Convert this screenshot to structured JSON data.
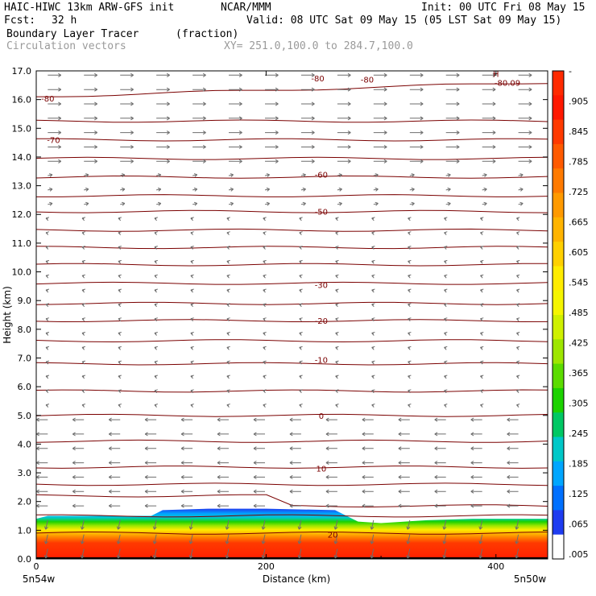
{
  "header": {
    "model": "HAIC-HIWC 13km ARW-GFS init",
    "org": "NCAR/MMM",
    "init": "Init: 00 UTC Fri 08 May 15",
    "fcst_label": "Fcst:",
    "fcst_value": "32 h",
    "valid": "Valid: 08 UTC Sat 09 May 15 (05 LST Sat 09 May 15)",
    "field": "Boundary Layer Tracer",
    "field_units": "(fraction)",
    "vectors": "Circulation vectors",
    "xy": "XY= 251.0,100.0 to 284.7,100.0"
  },
  "chart_data": {
    "type": "heatmap",
    "xlabel": "Distance (km)",
    "ylabel": "Height (km)",
    "xlim": [
      0,
      445
    ],
    "ylim": [
      0,
      17
    ],
    "x_ticks": [
      {
        "value": 0,
        "label": "0"
      },
      {
        "value": 200,
        "label": "200"
      },
      {
        "value": 400,
        "label": "400"
      }
    ],
    "x_end_labels": {
      "left": "5n54w",
      "right": "5n50w"
    },
    "y_ticks": [
      "0.0",
      "1.0",
      "2.0",
      "3.0",
      "4.0",
      "5.0",
      "6.0",
      "7.0",
      "8.0",
      "9.0",
      "10.0",
      "11.0",
      "12.0",
      "13.0",
      "14.0",
      "15.0",
      "16.0",
      "17.0"
    ],
    "colorbar": {
      "labels": [
        "-",
        ".905",
        ".845",
        ".785",
        ".725",
        ".665",
        ".605",
        ".545",
        ".485",
        ".425",
        ".365",
        ".305",
        ".245",
        ".185",
        ".125",
        ".065",
        ".005"
      ],
      "colors": [
        "#ff2a00",
        "#ff1800",
        "#ff3a00",
        "#ff5a00",
        "#ff7a00",
        "#ff9a00",
        "#ffb400",
        "#ffd000",
        "#ffec00",
        "#f5f500",
        "#cff000",
        "#9ee600",
        "#5cdc00",
        "#1cd200",
        "#00c864",
        "#00c8c8",
        "#00a6ff",
        "#0070ff",
        "#1e3cf0",
        "#ffffff"
      ]
    },
    "tracer_boundary": {
      "x": [
        0,
        10,
        25,
        50,
        80,
        100,
        110,
        150,
        200,
        260,
        280,
        300,
        340,
        380,
        445
      ],
      "top_km": [
        1.4,
        1.5,
        1.5,
        1.5,
        1.5,
        1.5,
        1.7,
        1.75,
        1.75,
        1.7,
        1.3,
        1.25,
        1.35,
        1.4,
        1.4
      ]
    },
    "temperature_contours": [
      {
        "label": "-80",
        "x": 10,
        "y": 16.05
      },
      {
        "label": "-80",
        "x": 245,
        "y": 16.75
      },
      {
        "label": "-80",
        "x": 288,
        "y": 16.7
      },
      {
        "label": "-80.09",
        "x": 410,
        "y": 16.6
      },
      {
        "label": "-70",
        "x": 15,
        "y": 14.6
      },
      {
        "label": "-60",
        "x": 248,
        "y": 13.4
      },
      {
        "label": "-50",
        "x": 248,
        "y": 12.1
      },
      {
        "label": "-30",
        "x": 248,
        "y": 9.55
      },
      {
        "label": "-20",
        "x": 248,
        "y": 8.3
      },
      {
        "label": "-10",
        "x": 248,
        "y": 6.95
      },
      {
        "label": "0",
        "x": 248,
        "y": 5.0
      },
      {
        "label": "10",
        "x": 248,
        "y": 3.15
      },
      {
        "label": "20",
        "x": 258,
        "y": 0.85
      }
    ],
    "high_marker": {
      "label": "H",
      "x": 400,
      "y": 16.9
    },
    "contour_levels_km": [
      0.9,
      1.5,
      2.2,
      2.6,
      3.2,
      4.1,
      5.0,
      5.85,
      6.8,
      7.6,
      8.3,
      8.9,
      9.6,
      10.25,
      10.85,
      11.45,
      12.1,
      12.65,
      13.3,
      13.95,
      14.6,
      15.25,
      16.1
    ]
  }
}
